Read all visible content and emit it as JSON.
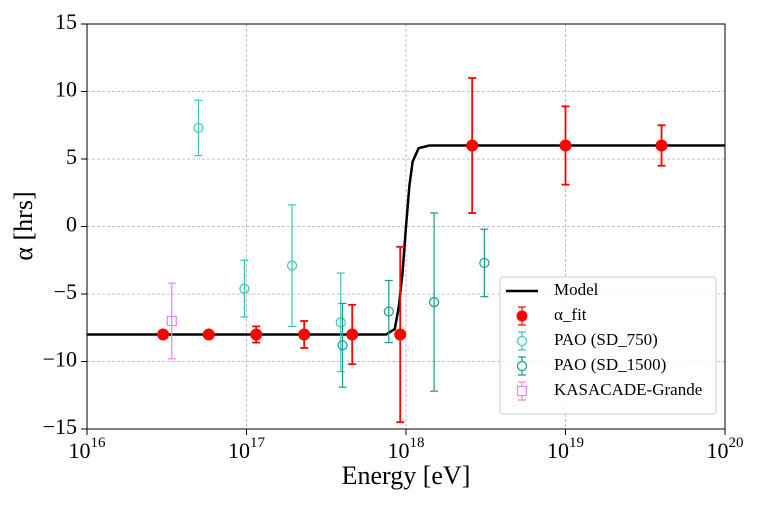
{
  "chart_data": {
    "type": "errorbar",
    "xlabel": "Energy [eV]",
    "ylabel": "α [hrs]",
    "xscale": "log",
    "xlim": [
      1e+16,
      1e+20
    ],
    "xticks": [
      {
        "value": 1e+16,
        "label": "10^16"
      },
      {
        "value": 1e+17,
        "label": "10^17"
      },
      {
        "value": 1e+18,
        "label": "10^18"
      },
      {
        "value": 1e+19,
        "label": "10^19"
      },
      {
        "value": 1e+20,
        "label": "10^20"
      }
    ],
    "ylim": [
      -15,
      15
    ],
    "yticks": [
      {
        "value": -15,
        "label": "−15"
      },
      {
        "value": -10,
        "label": "−10"
      },
      {
        "value": -5,
        "label": "−5"
      },
      0,
      5,
      10,
      15
    ],
    "grid": true,
    "legend": "lower right",
    "series": [
      {
        "name": "Model",
        "color": "#000000",
        "marker": "line",
        "x": [
          1e+16,
          7.5e+17,
          8.5e+17,
          9e+17,
          9.5e+17,
          1e+18,
          1.05e+18,
          1.1e+18,
          1.2e+18,
          1.4e+18,
          1e+20
        ],
        "values": [
          -8,
          -8,
          -7.6,
          -6,
          -3.5,
          0,
          3,
          4.8,
          5.8,
          6,
          6
        ]
      },
      {
        "name": "α_fit",
        "color": "#ff0000",
        "marker": "filled-circle",
        "x": [
          3e+16,
          5.8e+16,
          1.15e+17,
          2.3e+17,
          4.6e+17,
          9.2e+17,
          2.6e+18,
          1e+19,
          4e+19
        ],
        "values": [
          -8,
          -8,
          -8,
          -8,
          -8,
          -8,
          6,
          6,
          6
        ],
        "errors": [
          0,
          0,
          0.6,
          1,
          2.2,
          6.5,
          5,
          2.9,
          1.5
        ]
      },
      {
        "name": "PAO (SD_750)",
        "color": "#3cc4bd",
        "marker": "open-circle",
        "x": [
          5e+16,
          9.7e+16,
          1.93e+17,
          3.9e+17
        ],
        "values": [
          7.3,
          -4.6,
          -2.9,
          -7.1
        ],
        "errors": [
          2.05,
          2.1,
          4.5,
          3.65
        ]
      },
      {
        "name": "PAO (SD_1500)",
        "color": "#189a8e",
        "marker": "open-circle",
        "x": [
          4e+17,
          7.8e+17,
          1.5e+18,
          3.1e+18
        ],
        "values": [
          -8.8,
          -6.3,
          -5.6,
          -2.7
        ],
        "errors": [
          3.1,
          2.3,
          6.6,
          2.5
        ]
      },
      {
        "name": "KASACADE-Grande",
        "color": "#ee82ee",
        "marker": "open-square",
        "x": [
          3.4e+16
        ],
        "values": [
          -7
        ],
        "errors": [
          2.8
        ]
      }
    ]
  }
}
